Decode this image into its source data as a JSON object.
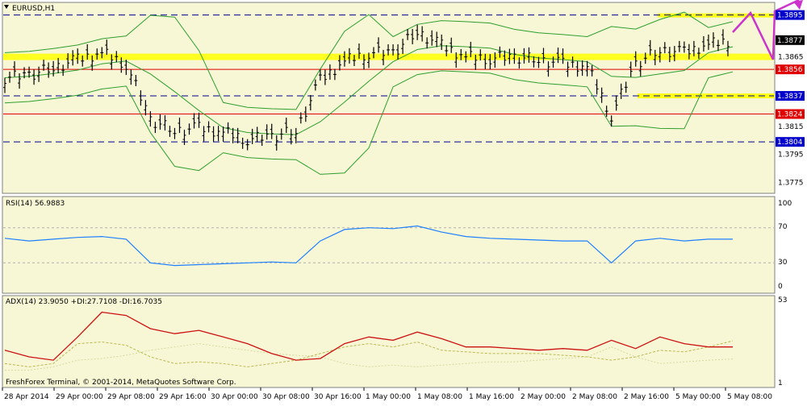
{
  "main": {
    "symbol_label": "EURUSD,H1",
    "price_labels": [
      "1.3895",
      "1.3877",
      "1.3865",
      "1.3856",
      "1.3837",
      "1.3824",
      "1.3815",
      "1.3804",
      "1.3795",
      "1.3775"
    ],
    "flag_labels": [
      {
        "text": "1.3895",
        "price": 1.3895,
        "bg": "#0000cc"
      },
      {
        "text": "1.3877",
        "price": 1.3877,
        "bg": "#000000"
      },
      {
        "text": "1.3856",
        "price": 1.3856,
        "bg": "#e00000"
      },
      {
        "text": "1.3837",
        "price": 1.3837,
        "bg": "#0000cc"
      },
      {
        "text": "1.3824",
        "price": 1.3824,
        "bg": "#e00000"
      },
      {
        "text": "1.3804",
        "price": 1.3804,
        "bg": "#0000cc"
      }
    ]
  },
  "rsi": {
    "label": "RSI(14) 56.9883",
    "levels": [
      "100",
      "70",
      "30",
      "0"
    ]
  },
  "adx": {
    "label": "ADX(14) 23.9050 +DI:27.7108 -DI:16.7035",
    "levels": [
      "53",
      "1"
    ]
  },
  "footer": {
    "copyright": "FreshForex Terminal, © 2001-2014, MetaQuotes Software Corp."
  },
  "colors": {
    "pane_bg": "#f7f7d6",
    "candle": "#000000",
    "bollinger": "#2e9e2e",
    "rsi_line": "#1e7fff",
    "adx_main": "#cc1111",
    "di_plus": "#b8b850",
    "di_minus": "#d8d8a0",
    "support_band": "#ffff00",
    "blue_dashed": "#00008b",
    "red_line": "#e00000",
    "arrow": "#cc33cc"
  },
  "chart_data": {
    "type": "line",
    "x_labels": [
      "28 Apr 2014",
      "29 Apr 00:00",
      "29 Apr 08:00",
      "29 Apr 16:00",
      "30 Apr 00:00",
      "30 Apr 08:00",
      "30 Apr 16:00",
      "1 May 00:00",
      "1 May 08:00",
      "1 May 16:00",
      "2 May 00:00",
      "2 May 08:00",
      "2 May 16:00",
      "5 May 00:00",
      "5 May 08:00"
    ],
    "ylim": [
      1.377,
      1.39
    ],
    "price_close": [
      1.385,
      1.3852,
      1.3857,
      1.3863,
      1.3868,
      1.386,
      1.382,
      1.3812,
      1.3814,
      1.3811,
      1.3806,
      1.3808,
      1.3812,
      1.3848,
      1.3862,
      1.3868,
      1.3868,
      1.3883,
      1.3873,
      1.3865,
      1.3864,
      1.3865,
      1.3863,
      1.386,
      1.3858,
      1.3823,
      1.386,
      1.387,
      1.3868,
      1.3874,
      1.3877
    ],
    "horizontal_levels": {
      "blue_dashed": [
        1.3895,
        1.3837,
        1.3804
      ],
      "red_solid": [
        1.3856,
        1.3824
      ],
      "yellow_bands": [
        1.3865,
        1.3895,
        1.3837
      ]
    },
    "rsi": {
      "ylim": [
        0,
        100
      ],
      "levels": [
        70,
        30
      ],
      "values": [
        58,
        55,
        57,
        59,
        60,
        57,
        30,
        27,
        28,
        29,
        30,
        31,
        30,
        55,
        68,
        70,
        69,
        72,
        65,
        60,
        58,
        57,
        56,
        55,
        55,
        30,
        55,
        58,
        55,
        57,
        57
      ]
    },
    "adx": {
      "ylim": [
        1,
        53
      ],
      "adx": [
        22,
        18,
        16,
        30,
        45,
        43,
        35,
        32,
        34,
        30,
        26,
        20,
        16,
        17,
        26,
        30,
        28,
        33,
        29,
        24,
        24,
        23,
        22,
        23,
        22,
        28,
        23,
        30,
        26,
        24,
        24
      ],
      "di_plus": [
        14,
        12,
        14,
        26,
        27,
        25,
        18,
        14,
        15,
        14,
        12,
        14,
        16,
        20,
        24,
        26,
        24,
        27,
        22,
        21,
        20,
        20,
        20,
        19,
        18,
        16,
        18,
        22,
        21,
        24,
        27.7
      ],
      "di_minus": [
        10,
        10,
        12,
        16,
        17,
        19,
        22,
        24,
        26,
        24,
        22,
        20,
        19,
        18,
        14,
        12,
        13,
        12,
        13,
        14,
        15,
        15,
        16,
        17,
        18,
        24,
        18,
        14,
        15,
        16,
        16.7
      ]
    }
  }
}
